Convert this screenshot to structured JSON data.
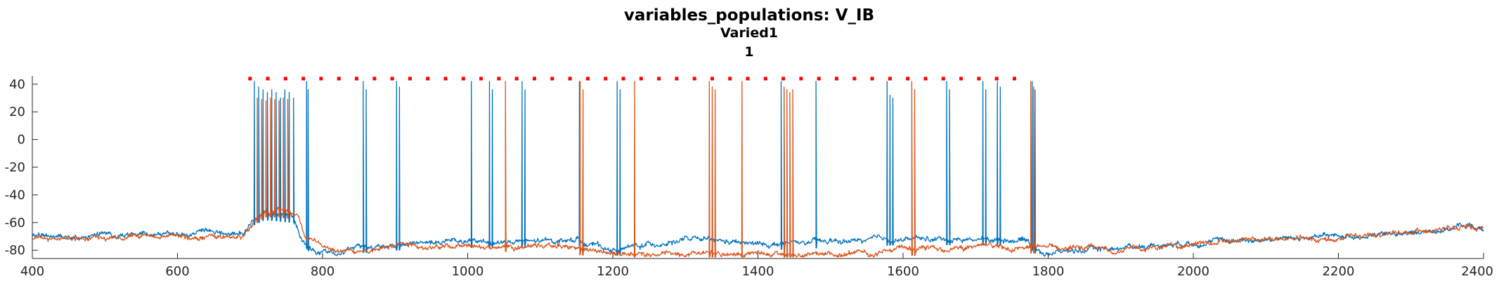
{
  "chart_data": {
    "type": "line",
    "title": "variables_populations: V_IB",
    "subtitle": "Varied1",
    "subtitle2": "1",
    "xlabel": "",
    "ylabel": "",
    "xlim": [
      400,
      2400
    ],
    "ylim": [
      -86,
      46
    ],
    "x_ticks": [
      "400",
      "600",
      "800",
      "1000",
      "1200",
      "1400",
      "1600",
      "1800",
      "2000",
      "2200",
      "2400"
    ],
    "y_ticks": [
      "40",
      "20",
      "0",
      "-20",
      "-40",
      "-60",
      "-80"
    ],
    "grid": false,
    "colors": {
      "series_blue": "#0072BD",
      "series_orange": "#D95319",
      "markers": "#FF0000",
      "axis": "#262626"
    },
    "series": [
      {
        "color": "#0072BD",
        "baseline": [
          [
            400,
            -70
          ],
          [
            690,
            -68
          ],
          [
            705,
            -58
          ],
          [
            720,
            -54
          ],
          [
            760,
            -56
          ],
          [
            770,
            -70
          ],
          [
            790,
            -82
          ],
          [
            850,
            -78
          ],
          [
            900,
            -76
          ],
          [
            1000,
            -74
          ],
          [
            1100,
            -74
          ],
          [
            1150,
            -72
          ],
          [
            1200,
            -80
          ],
          [
            1300,
            -72
          ],
          [
            1400,
            -76
          ],
          [
            1500,
            -74
          ],
          [
            1600,
            -72
          ],
          [
            1700,
            -72
          ],
          [
            1770,
            -72
          ],
          [
            1790,
            -82
          ],
          [
            1900,
            -78
          ],
          [
            2000,
            -74
          ],
          [
            2100,
            -72
          ],
          [
            2200,
            -70
          ],
          [
            2300,
            -68
          ],
          [
            2380,
            -62
          ],
          [
            2400,
            -66
          ]
        ],
        "spikes": [
          {
            "x": 706,
            "top": 42
          },
          {
            "x": 712,
            "top": 38
          },
          {
            "x": 718,
            "top": 36
          },
          {
            "x": 724,
            "top": 34
          },
          {
            "x": 730,
            "top": 36
          },
          {
            "x": 736,
            "top": 34
          },
          {
            "x": 742,
            "top": 30
          },
          {
            "x": 748,
            "top": 36
          },
          {
            "x": 754,
            "top": 34
          },
          {
            "x": 760,
            "top": 30
          },
          {
            "x": 778,
            "top": 42
          },
          {
            "x": 780,
            "top": 36
          },
          {
            "x": 856,
            "top": 42
          },
          {
            "x": 860,
            "top": 36
          },
          {
            "x": 902,
            "top": 42
          },
          {
            "x": 906,
            "top": 38
          },
          {
            "x": 1005,
            "top": 42
          },
          {
            "x": 1030,
            "top": 42
          },
          {
            "x": 1034,
            "top": 36
          },
          {
            "x": 1075,
            "top": 42
          },
          {
            "x": 1079,
            "top": 36
          },
          {
            "x": 1154,
            "top": 42
          },
          {
            "x": 1206,
            "top": 42
          },
          {
            "x": 1210,
            "top": 36
          },
          {
            "x": 1432,
            "top": 42
          },
          {
            "x": 1436,
            "top": 36
          },
          {
            "x": 1480,
            "top": 42
          },
          {
            "x": 1578,
            "top": 42
          },
          {
            "x": 1582,
            "top": 32
          },
          {
            "x": 1586,
            "top": 30
          },
          {
            "x": 1660,
            "top": 42
          },
          {
            "x": 1664,
            "top": 36
          },
          {
            "x": 1710,
            "top": 42
          },
          {
            "x": 1714,
            "top": 36
          },
          {
            "x": 1730,
            "top": 42
          },
          {
            "x": 1734,
            "top": 38
          },
          {
            "x": 1778,
            "top": 42
          },
          {
            "x": 1782,
            "top": 36
          }
        ]
      },
      {
        "color": "#D95319",
        "baseline": [
          [
            400,
            -72
          ],
          [
            690,
            -70
          ],
          [
            705,
            -58
          ],
          [
            720,
            -52
          ],
          [
            740,
            -52
          ],
          [
            765,
            -54
          ],
          [
            775,
            -70
          ],
          [
            800,
            -78
          ],
          [
            850,
            -80
          ],
          [
            900,
            -76
          ],
          [
            1000,
            -78
          ],
          [
            1100,
            -76
          ],
          [
            1200,
            -82
          ],
          [
            1300,
            -82
          ],
          [
            1400,
            -82
          ],
          [
            1500,
            -84
          ],
          [
            1600,
            -80
          ],
          [
            1700,
            -78
          ],
          [
            1800,
            -78
          ],
          [
            1900,
            -80
          ],
          [
            2000,
            -76
          ],
          [
            2100,
            -72
          ],
          [
            2200,
            -72
          ],
          [
            2300,
            -66
          ],
          [
            2380,
            -64
          ],
          [
            2400,
            -62
          ]
        ],
        "spikes": [
          {
            "x": 710,
            "top": 30
          },
          {
            "x": 716,
            "top": 29
          },
          {
            "x": 722,
            "top": 28
          },
          {
            "x": 728,
            "top": 30
          },
          {
            "x": 734,
            "top": 29
          },
          {
            "x": 740,
            "top": 28
          },
          {
            "x": 746,
            "top": 30
          },
          {
            "x": 752,
            "top": 29
          },
          {
            "x": 1052,
            "top": 42
          },
          {
            "x": 1155,
            "top": 42
          },
          {
            "x": 1159,
            "top": 36
          },
          {
            "x": 1230,
            "top": 42
          },
          {
            "x": 1333,
            "top": 42
          },
          {
            "x": 1337,
            "top": 38
          },
          {
            "x": 1341,
            "top": 36
          },
          {
            "x": 1378,
            "top": 42
          },
          {
            "x": 1436,
            "top": 38
          },
          {
            "x": 1440,
            "top": 36
          },
          {
            "x": 1444,
            "top": 34
          },
          {
            "x": 1448,
            "top": 36
          },
          {
            "x": 1612,
            "top": 42
          },
          {
            "x": 1616,
            "top": 36
          },
          {
            "x": 1776,
            "top": 42
          },
          {
            "x": 1780,
            "top": 38
          }
        ]
      }
    ],
    "spike_markers": {
      "y": 44,
      "x_start": 700,
      "x_end": 1776,
      "step": 24.5
    }
  }
}
